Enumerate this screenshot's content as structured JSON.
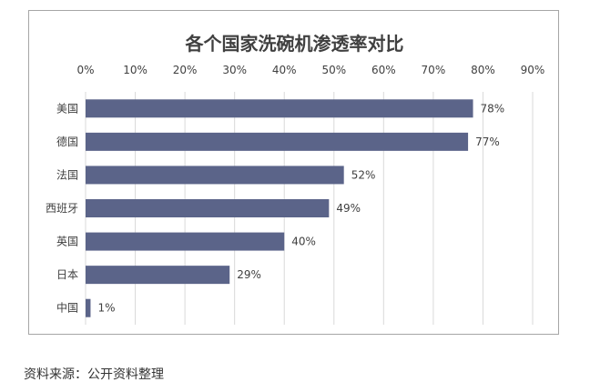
{
  "chart_data": {
    "type": "bar",
    "orientation": "horizontal",
    "title": "各个国家洗碗机渗透率对比",
    "xlabel": "",
    "ylabel": "",
    "categories": [
      "美国",
      "德国",
      "法国",
      "西班牙",
      "英国",
      "日本",
      "中国"
    ],
    "values": [
      78,
      77,
      52,
      49,
      40,
      29,
      1
    ],
    "data_labels": [
      "78%",
      "77%",
      "52%",
      "49%",
      "40%",
      "29%",
      "1%"
    ],
    "xlim": [
      0,
      90
    ],
    "x_ticks": [
      0,
      10,
      20,
      30,
      40,
      50,
      60,
      70,
      80,
      90
    ],
    "x_tick_labels": [
      "0%",
      "10%",
      "20%",
      "30%",
      "40%",
      "50%",
      "60%",
      "70%",
      "80%",
      "90%"
    ],
    "x_axis_position": "top",
    "grid": true,
    "bar_color": "#5b6489",
    "grid_color": "#d9d9d9"
  },
  "source_note": "资料来源：公开资料整理"
}
